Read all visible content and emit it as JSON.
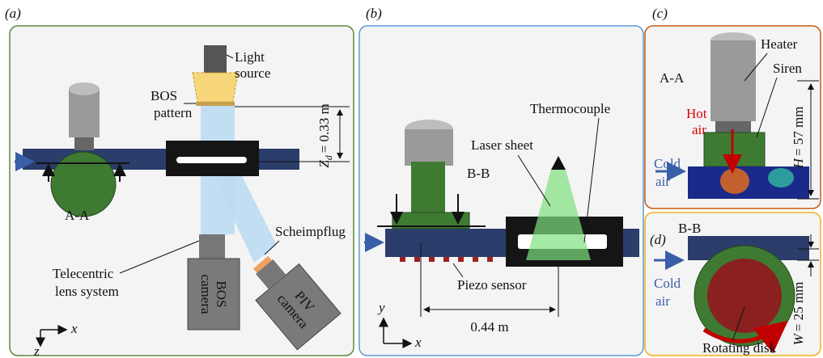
{
  "panel_a": {
    "label": "(a)",
    "light_source": [
      "Light",
      "source"
    ],
    "bos_pattern": [
      "BOS",
      "pattern"
    ],
    "distance": {
      "symbol": "Z",
      "subscript": "d",
      "value": "= 0.33 m"
    },
    "section": "A-A",
    "scheimpflug": "Scheimpflug",
    "telecentric": [
      "Telecentric",
      "lens system"
    ],
    "bos_camera": [
      "BOS",
      "camera"
    ],
    "piv_camera": [
      "PIV",
      "camera"
    ],
    "axis_x": "x",
    "axis_z": "z"
  },
  "panel_b": {
    "label": "(b)",
    "laser_sheet": "Laser sheet",
    "thermocouple": "Thermocouple",
    "section": "B-B",
    "piezo": "Piezo sensor",
    "distance": "0.44 m",
    "axis_y": "y",
    "axis_x": "x"
  },
  "panel_c": {
    "label": "(c)",
    "section": "A-A",
    "heater": "Heater",
    "siren": "Siren",
    "hot_air": [
      "Hot",
      "air"
    ],
    "cold_air": [
      "Cold",
      "air"
    ],
    "height": {
      "symbol": "H",
      "value": "= 57 mm"
    }
  },
  "panel_d": {
    "label": "(d)",
    "section": "B-B",
    "cold_air": [
      "Cold",
      "air"
    ],
    "disk": "Rotating disk",
    "width": {
      "symbol": "W",
      "value": "= 25 mm"
    }
  }
}
